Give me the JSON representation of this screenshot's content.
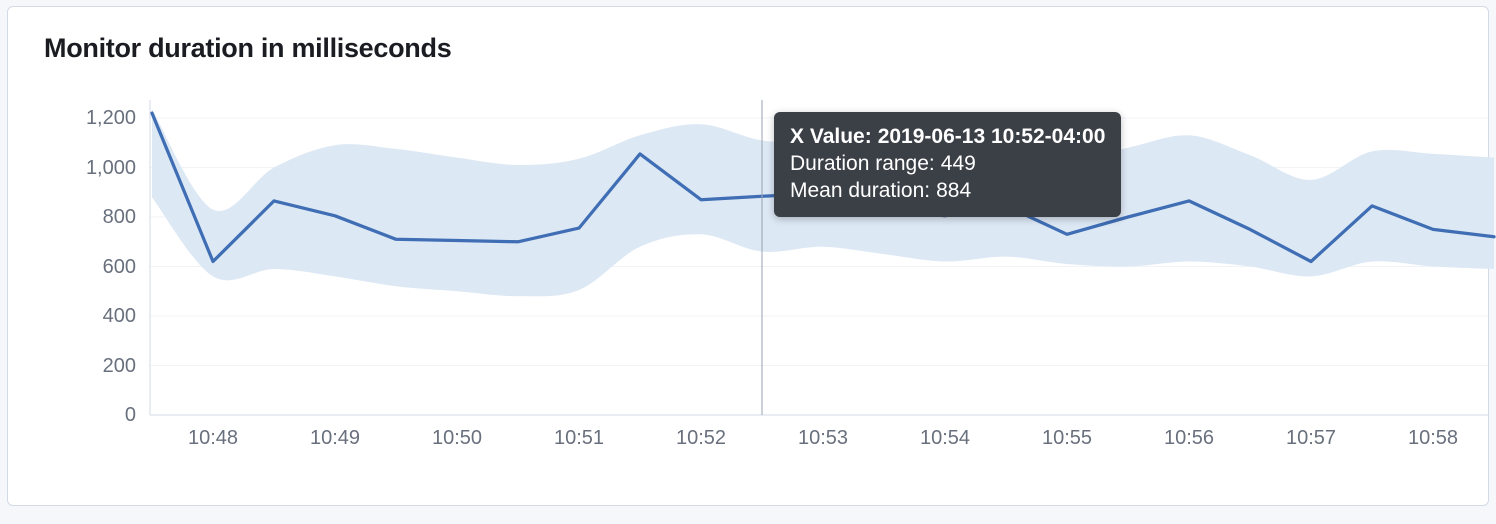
{
  "title": "Monitor duration in milliseconds",
  "tooltip": {
    "x_label": "X Value:",
    "x_value": "2019-06-13 10:52-04:00",
    "lines": [
      {
        "label": "Duration range:",
        "value": "449"
      },
      {
        "label": "Mean duration:",
        "value": "884"
      }
    ]
  },
  "colors": {
    "line": "#3f6eb4",
    "band": "#dde8f5",
    "crosshair": "#98a2b3",
    "axis": "#d3dae6",
    "grid": "#f1f3f7",
    "tick_text": "#69707d",
    "title_text": "#1a1c21",
    "tooltip_bg": "#3b3f46",
    "tooltip_text": "#ffffff",
    "card_border": "#d3dae6",
    "card_bg": "#ffffff",
    "page_bg": "#f5f7fa"
  },
  "chart_data": {
    "type": "line",
    "title": "Monitor duration in milliseconds",
    "xlabel": "",
    "ylabel": "",
    "ylim": [
      0,
      1200
    ],
    "grid": true,
    "legend": "none",
    "y_ticks": {
      "values": [
        0,
        200,
        400,
        600,
        800,
        1000,
        1200
      ],
      "labels": [
        "0",
        "200",
        "400",
        "600",
        "800",
        "1,000",
        "1,200"
      ]
    },
    "x_tick_labels": [
      "10:48",
      "10:49",
      "10:50",
      "10:51",
      "10:52",
      "10:53",
      "10:54",
      "10:55",
      "10:56",
      "10:57",
      "10:58"
    ],
    "x": [
      "10:47:30",
      "10:48:00",
      "10:48:30",
      "10:49:00",
      "10:49:30",
      "10:50:00",
      "10:50:30",
      "10:51:00",
      "10:51:30",
      "10:52:00",
      "10:52:30",
      "10:53:00",
      "10:53:30",
      "10:54:00",
      "10:54:30",
      "10:55:00",
      "10:55:30",
      "10:56:00",
      "10:56:30",
      "10:57:00",
      "10:57:30",
      "10:58:00",
      "10:58:30"
    ],
    "series": [
      {
        "name": "Mean duration",
        "values": [
          1220,
          620,
          865,
          805,
          710,
          705,
          700,
          755,
          1055,
          870,
          884,
          895,
          830,
          805,
          845,
          730,
          800,
          865,
          750,
          620,
          845,
          750,
          720
        ]
      }
    ],
    "band": {
      "name": "Duration range",
      "lower": [
        880,
        560,
        590,
        560,
        520,
        500,
        480,
        505,
        680,
        730,
        660,
        680,
        650,
        620,
        640,
        610,
        600,
        620,
        600,
        560,
        620,
        600,
        590
      ],
      "upper": [
        1235,
        830,
        1000,
        1090,
        1075,
        1040,
        1010,
        1035,
        1130,
        1175,
        1109,
        1100,
        1050,
        1000,
        1010,
        1030,
        1080,
        1130,
        1050,
        950,
        1065,
        1055,
        1040
      ]
    },
    "hovered": {
      "index": 10,
      "x_value": "2019-06-13 10:52-04:00",
      "duration_range": 449,
      "mean_duration": 884
    }
  }
}
